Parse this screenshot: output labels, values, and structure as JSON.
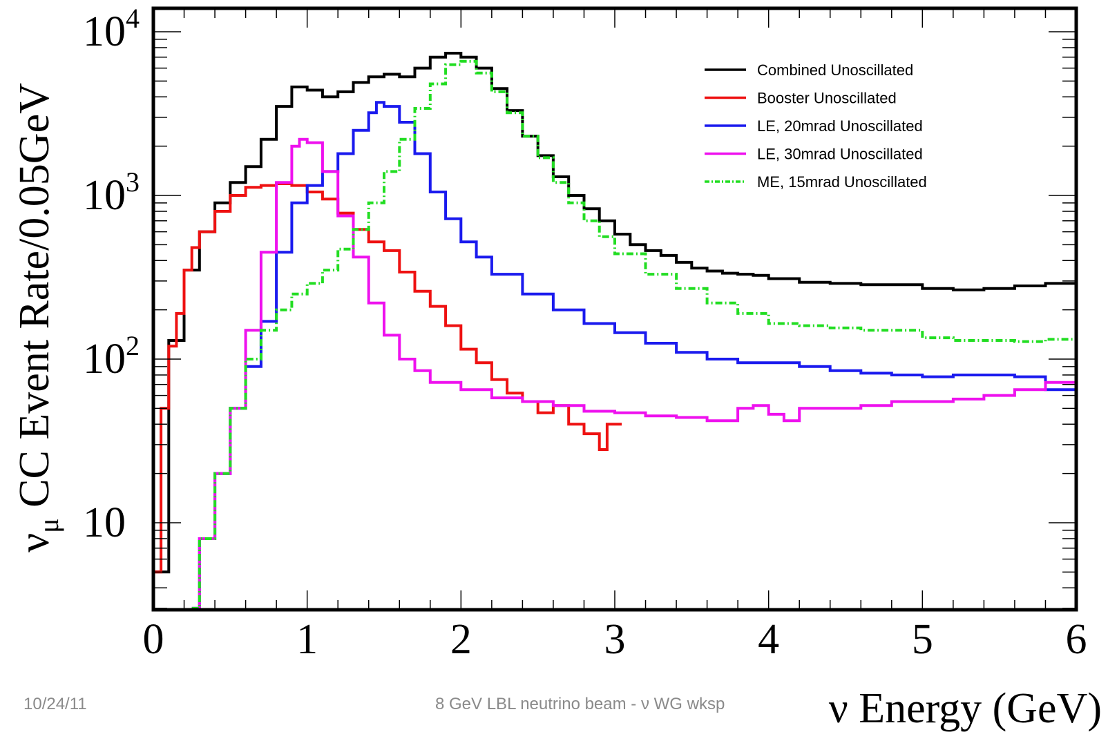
{
  "footer": {
    "date": "10/24/11",
    "text": "8 GeV LBL neutrino beam - ν WG wksp"
  },
  "chart_data": {
    "type": "line",
    "style": "step histogram",
    "xlabel": "ν Energy (GeV)",
    "ylabel_prefix": "ν",
    "ylabel_subscript": "μ",
    "ylabel_rest": " CC Event Rate/0.05GeV",
    "y_scale": "log",
    "xlim": [
      0,
      6
    ],
    "ylim": [
      3,
      10000
    ],
    "x_ticks": [
      {
        "value": 0,
        "label": "0"
      },
      {
        "value": 1,
        "label": "1"
      },
      {
        "value": 2,
        "label": "2"
      },
      {
        "value": 3,
        "label": "3"
      },
      {
        "value": 4,
        "label": "4"
      },
      {
        "value": 5,
        "label": "5"
      },
      {
        "value": 6,
        "label": "6"
      }
    ],
    "y_ticks": [
      {
        "value": 10,
        "base": "10",
        "exp": ""
      },
      {
        "value": 100,
        "base": "10",
        "exp": "2"
      },
      {
        "value": 1000,
        "base": "10",
        "exp": "3"
      },
      {
        "value": 10000,
        "base": "10",
        "exp": "4"
      }
    ],
    "grid": false,
    "legend_position": "top-right",
    "series": [
      {
        "name": "Combined Unoscillated",
        "color": "#000000",
        "dash": "",
        "points": [
          [
            0,
            5
          ],
          [
            0.1,
            130
          ],
          [
            0.2,
            350
          ],
          [
            0.3,
            600
          ],
          [
            0.4,
            900
          ],
          [
            0.5,
            1200
          ],
          [
            0.6,
            1500
          ],
          [
            0.7,
            2200
          ],
          [
            0.8,
            3500
          ],
          [
            0.9,
            4600
          ],
          [
            1.0,
            4400
          ],
          [
            1.1,
            4000
          ],
          [
            1.2,
            4300
          ],
          [
            1.3,
            4900
          ],
          [
            1.4,
            5300
          ],
          [
            1.5,
            5500
          ],
          [
            1.6,
            5300
          ],
          [
            1.7,
            6000
          ],
          [
            1.8,
            7000
          ],
          [
            1.9,
            7400
          ],
          [
            2.0,
            7000
          ],
          [
            2.1,
            6000
          ],
          [
            2.2,
            4500
          ],
          [
            2.3,
            3300
          ],
          [
            2.4,
            2300
          ],
          [
            2.5,
            1750
          ],
          [
            2.6,
            1300
          ],
          [
            2.7,
            1000
          ],
          [
            2.8,
            830
          ],
          [
            2.9,
            700
          ],
          [
            3.0,
            580
          ],
          [
            3.1,
            500
          ],
          [
            3.2,
            460
          ],
          [
            3.3,
            430
          ],
          [
            3.4,
            390
          ],
          [
            3.5,
            360
          ],
          [
            3.6,
            345
          ],
          [
            3.7,
            335
          ],
          [
            3.8,
            330
          ],
          [
            3.9,
            325
          ],
          [
            4.0,
            310
          ],
          [
            4.2,
            295
          ],
          [
            4.4,
            290
          ],
          [
            4.6,
            285
          ],
          [
            4.8,
            285
          ],
          [
            5.0,
            270
          ],
          [
            5.2,
            265
          ],
          [
            5.4,
            270
          ],
          [
            5.6,
            280
          ],
          [
            5.8,
            290
          ],
          [
            6.0,
            320
          ]
        ]
      },
      {
        "name": "Booster Unoscillated",
        "color": "#ee1111",
        "dash": "",
        "points": [
          [
            0,
            5
          ],
          [
            0.05,
            50
          ],
          [
            0.1,
            120
          ],
          [
            0.15,
            190
          ],
          [
            0.2,
            350
          ],
          [
            0.25,
            480
          ],
          [
            0.3,
            600
          ],
          [
            0.4,
            800
          ],
          [
            0.5,
            1000
          ],
          [
            0.6,
            1120
          ],
          [
            0.7,
            1150
          ],
          [
            0.8,
            1180
          ],
          [
            0.9,
            1150
          ],
          [
            1.0,
            1050
          ],
          [
            1.1,
            950
          ],
          [
            1.2,
            780
          ],
          [
            1.3,
            620
          ],
          [
            1.4,
            520
          ],
          [
            1.5,
            460
          ],
          [
            1.6,
            340
          ],
          [
            1.7,
            260
          ],
          [
            1.8,
            210
          ],
          [
            1.9,
            160
          ],
          [
            2.0,
            115
          ],
          [
            2.1,
            95
          ],
          [
            2.2,
            75
          ],
          [
            2.3,
            62
          ],
          [
            2.4,
            55
          ],
          [
            2.5,
            47
          ],
          [
            2.6,
            52
          ],
          [
            2.7,
            40
          ],
          [
            2.8,
            35
          ],
          [
            2.9,
            28
          ],
          [
            2.95,
            40
          ],
          [
            3.0,
            40
          ]
        ]
      },
      {
        "name": "LE, 20mrad Unoscillated",
        "color": "#1a1aee",
        "dash": "",
        "points": [
          [
            0.25,
            3
          ],
          [
            0.3,
            8
          ],
          [
            0.4,
            20
          ],
          [
            0.5,
            50
          ],
          [
            0.6,
            90
          ],
          [
            0.7,
            170
          ],
          [
            0.8,
            450
          ],
          [
            0.9,
            900
          ],
          [
            1.0,
            1150
          ],
          [
            1.1,
            1400
          ],
          [
            1.2,
            1800
          ],
          [
            1.3,
            2500
          ],
          [
            1.4,
            3200
          ],
          [
            1.45,
            3700
          ],
          [
            1.5,
            3500
          ],
          [
            1.6,
            2800
          ],
          [
            1.7,
            1800
          ],
          [
            1.8,
            1050
          ],
          [
            1.9,
            720
          ],
          [
            2.0,
            520
          ],
          [
            2.1,
            420
          ],
          [
            2.2,
            330
          ],
          [
            2.4,
            250
          ],
          [
            2.6,
            200
          ],
          [
            2.8,
            165
          ],
          [
            3.0,
            145
          ],
          [
            3.2,
            125
          ],
          [
            3.4,
            110
          ],
          [
            3.6,
            100
          ],
          [
            3.8,
            95
          ],
          [
            4.0,
            95
          ],
          [
            4.2,
            90
          ],
          [
            4.4,
            85
          ],
          [
            4.6,
            82
          ],
          [
            4.8,
            80
          ],
          [
            5.0,
            78
          ],
          [
            5.2,
            80
          ],
          [
            5.4,
            80
          ],
          [
            5.6,
            78
          ],
          [
            5.8,
            65
          ],
          [
            6.0,
            80
          ]
        ]
      },
      {
        "name": "LE, 30mrad Unoscillated",
        "color": "#ee11ee",
        "dash": "",
        "points": [
          [
            0.25,
            3
          ],
          [
            0.3,
            8
          ],
          [
            0.4,
            20
          ],
          [
            0.5,
            50
          ],
          [
            0.6,
            150
          ],
          [
            0.7,
            450
          ],
          [
            0.8,
            1200
          ],
          [
            0.9,
            2000
          ],
          [
            0.95,
            2200
          ],
          [
            1.0,
            2100
          ],
          [
            1.1,
            1400
          ],
          [
            1.2,
            750
          ],
          [
            1.3,
            420
          ],
          [
            1.4,
            220
          ],
          [
            1.5,
            140
          ],
          [
            1.6,
            100
          ],
          [
            1.7,
            85
          ],
          [
            1.8,
            72
          ],
          [
            2.0,
            65
          ],
          [
            2.2,
            58
          ],
          [
            2.4,
            55
          ],
          [
            2.6,
            52
          ],
          [
            2.8,
            48
          ],
          [
            3.0,
            47
          ],
          [
            3.2,
            45
          ],
          [
            3.4,
            44
          ],
          [
            3.6,
            42
          ],
          [
            3.8,
            50
          ],
          [
            3.9,
            52
          ],
          [
            4.0,
            46
          ],
          [
            4.1,
            42
          ],
          [
            4.2,
            50
          ],
          [
            4.4,
            50
          ],
          [
            4.6,
            52
          ],
          [
            4.8,
            55
          ],
          [
            5.0,
            55
          ],
          [
            5.2,
            57
          ],
          [
            5.4,
            60
          ],
          [
            5.6,
            65
          ],
          [
            5.8,
            72
          ],
          [
            6.0,
            78
          ]
        ]
      },
      {
        "name": "ME, 15mrad Unoscillated",
        "color": "#22dd22",
        "dash": "10,4,2,4",
        "points": [
          [
            0.25,
            3
          ],
          [
            0.3,
            8
          ],
          [
            0.4,
            20
          ],
          [
            0.5,
            50
          ],
          [
            0.6,
            100
          ],
          [
            0.7,
            150
          ],
          [
            0.8,
            200
          ],
          [
            0.9,
            250
          ],
          [
            1.0,
            290
          ],
          [
            1.1,
            350
          ],
          [
            1.2,
            470
          ],
          [
            1.3,
            620
          ],
          [
            1.4,
            900
          ],
          [
            1.5,
            1400
          ],
          [
            1.6,
            2200
          ],
          [
            1.7,
            3400
          ],
          [
            1.8,
            4800
          ],
          [
            1.9,
            6300
          ],
          [
            2.0,
            6600
          ],
          [
            2.1,
            5600
          ],
          [
            2.2,
            4300
          ],
          [
            2.3,
            3200
          ],
          [
            2.4,
            2300
          ],
          [
            2.5,
            1700
          ],
          [
            2.6,
            1200
          ],
          [
            2.7,
            900
          ],
          [
            2.8,
            700
          ],
          [
            2.9,
            560
          ],
          [
            3.0,
            440
          ],
          [
            3.2,
            330
          ],
          [
            3.4,
            270
          ],
          [
            3.6,
            220
          ],
          [
            3.8,
            190
          ],
          [
            4.0,
            165
          ],
          [
            4.2,
            160
          ],
          [
            4.4,
            155
          ],
          [
            4.6,
            150
          ],
          [
            4.8,
            150
          ],
          [
            5.0,
            135
          ],
          [
            5.2,
            130
          ],
          [
            5.4,
            130
          ],
          [
            5.6,
            128
          ],
          [
            5.8,
            132
          ],
          [
            6.0,
            135
          ]
        ]
      }
    ]
  }
}
